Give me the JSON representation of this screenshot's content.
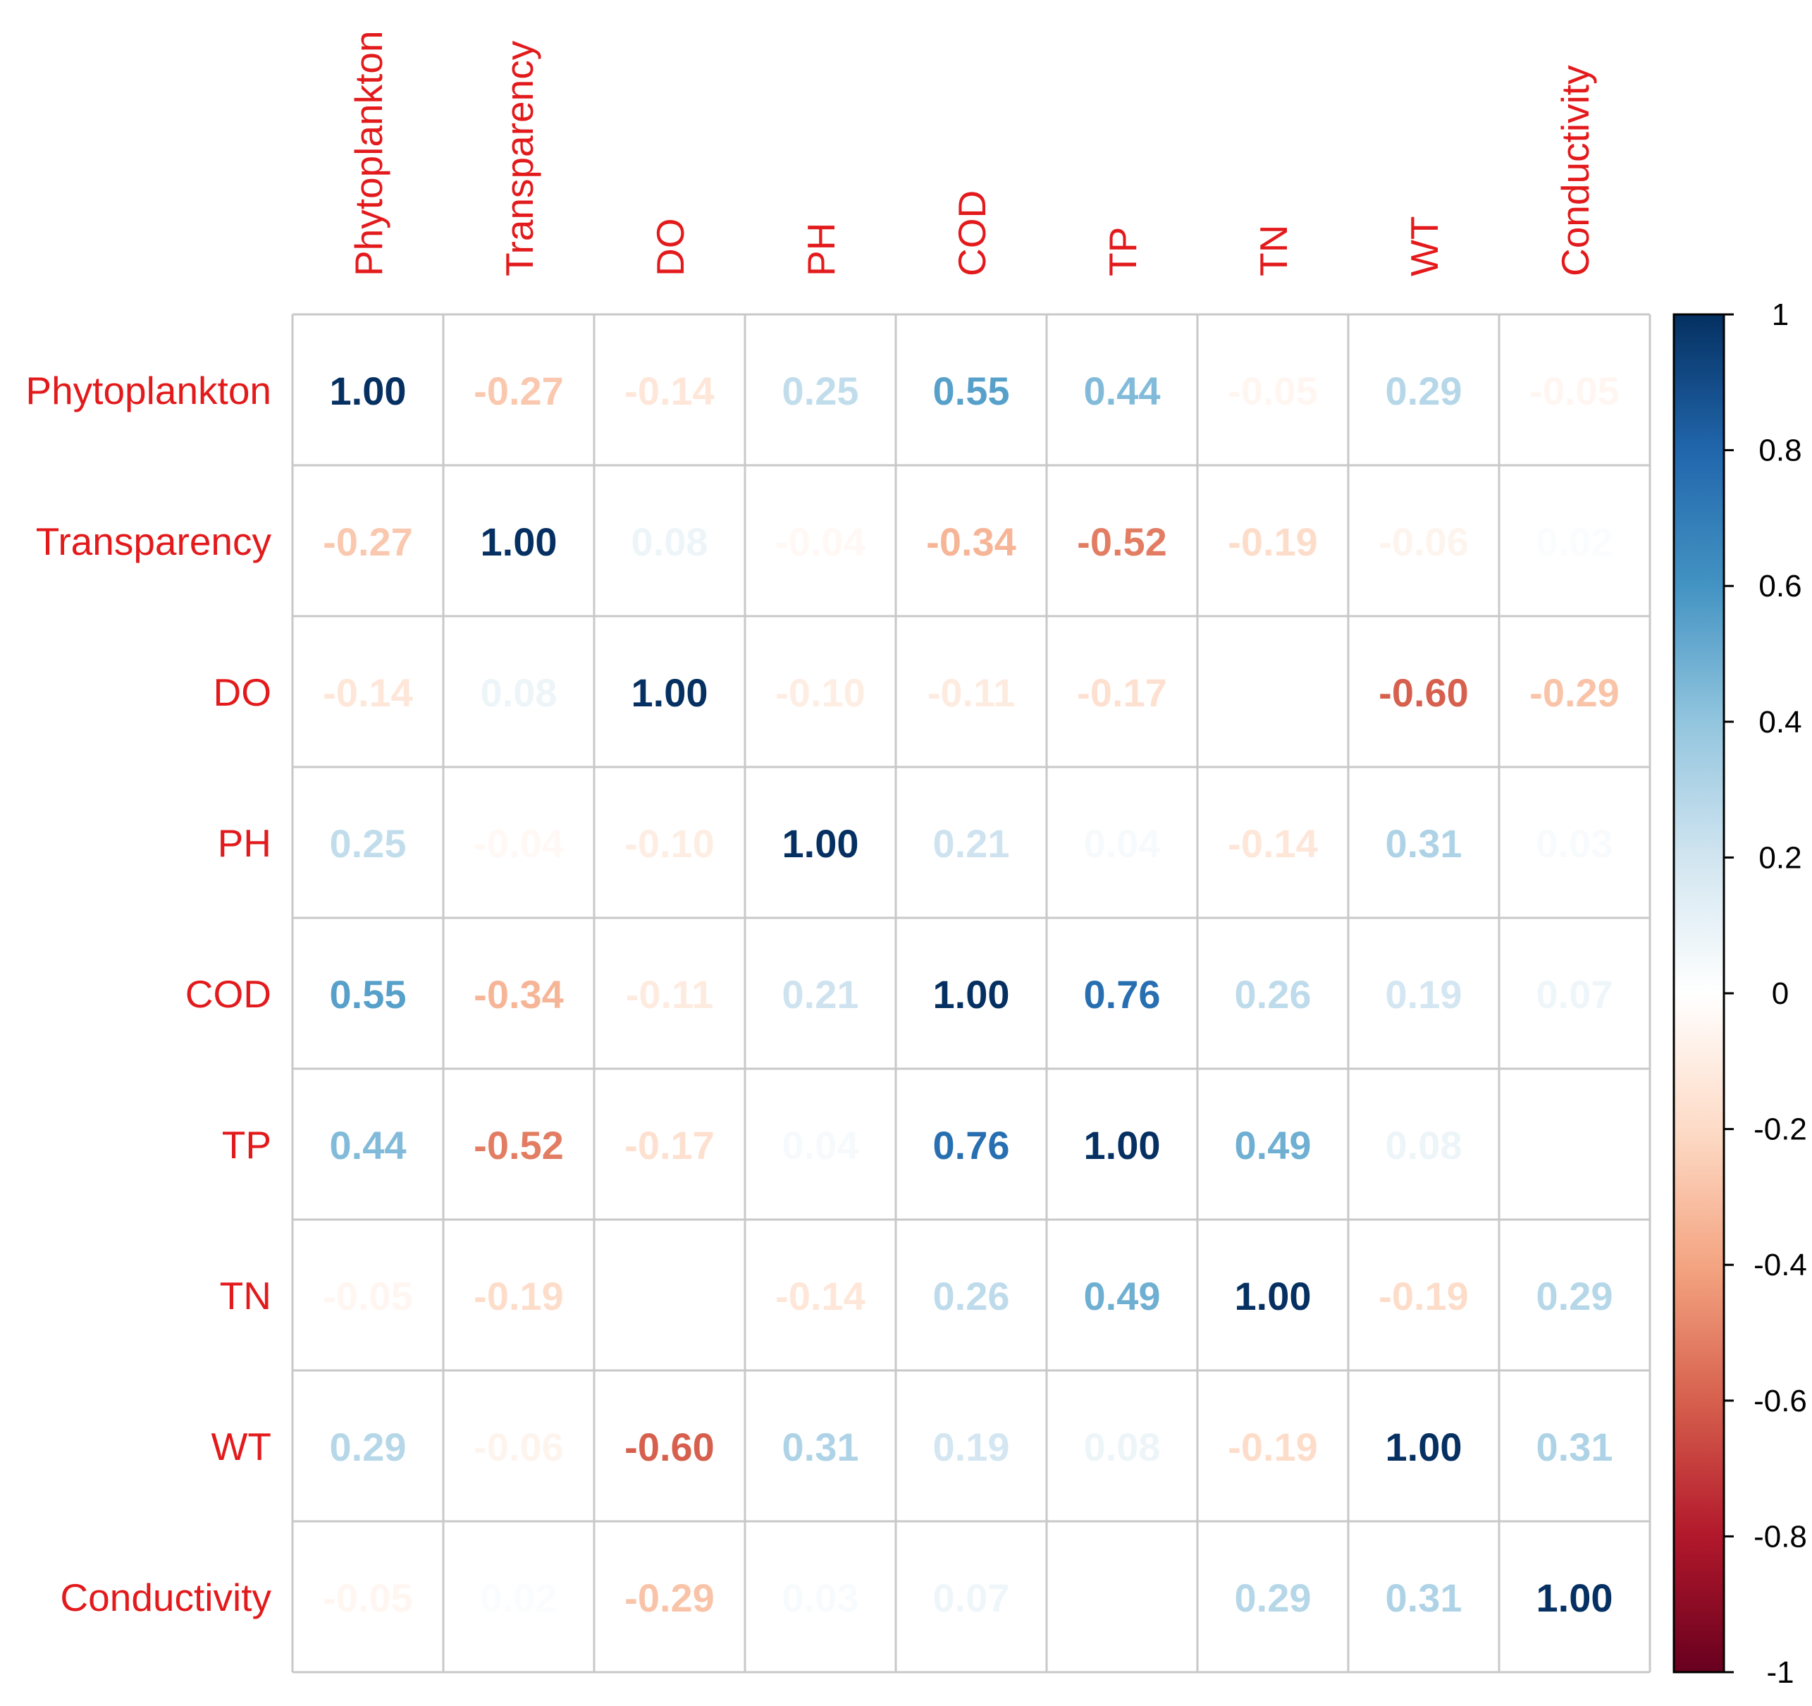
{
  "chart_data": {
    "type": "heatmap",
    "title": "",
    "variables": [
      "Phytoplankton",
      "Transparency",
      "DO",
      "PH",
      "COD",
      "TP",
      "TN",
      "WT",
      "Conductivity"
    ],
    "matrix": [
      [
        1.0,
        -0.27,
        -0.14,
        0.25,
        0.55,
        0.44,
        -0.05,
        0.29,
        -0.05
      ],
      [
        -0.27,
        1.0,
        0.08,
        -0.04,
        -0.34,
        -0.52,
        -0.19,
        -0.06,
        0.02
      ],
      [
        -0.14,
        0.08,
        1.0,
        -0.1,
        -0.11,
        -0.17,
        0.0,
        -0.6,
        -0.29
      ],
      [
        0.25,
        -0.04,
        -0.1,
        1.0,
        0.21,
        0.04,
        -0.14,
        0.31,
        0.03
      ],
      [
        0.55,
        -0.34,
        -0.11,
        0.21,
        1.0,
        0.76,
        0.26,
        0.19,
        0.07
      ],
      [
        0.44,
        -0.52,
        -0.17,
        0.04,
        0.76,
        1.0,
        0.49,
        0.08,
        0.0
      ],
      [
        -0.05,
        -0.19,
        0.0,
        -0.14,
        0.26,
        0.49,
        1.0,
        -0.19,
        0.29
      ],
      [
        0.29,
        -0.06,
        -0.6,
        0.31,
        0.19,
        0.08,
        -0.19,
        1.0,
        0.31
      ],
      [
        -0.05,
        0.02,
        -0.29,
        0.03,
        0.07,
        0.0,
        0.29,
        0.31,
        1.0
      ]
    ],
    "value_range": [
      -1,
      1
    ],
    "colorbar_ticks": [
      "1",
      "0.8",
      "0.6",
      "0.4",
      "0.2",
      "0",
      "-0.2",
      "-0.4",
      "-0.6",
      "-0.8",
      "-1"
    ],
    "colorbar_tick_values": [
      1,
      0.8,
      0.6,
      0.4,
      0.2,
      0,
      -0.2,
      -0.4,
      -0.6,
      -0.8,
      -1
    ],
    "colors": {
      "label": "#e31a1c",
      "grid": "#c8c8c8",
      "text": "#000000",
      "scale": [
        "#67001f",
        "#b2182b",
        "#d6604d",
        "#f4a582",
        "#fddbc7",
        "#ffffff",
        "#d1e5f0",
        "#92c5de",
        "#4393c3",
        "#2166ac",
        "#053061"
      ]
    },
    "legend": "right"
  }
}
